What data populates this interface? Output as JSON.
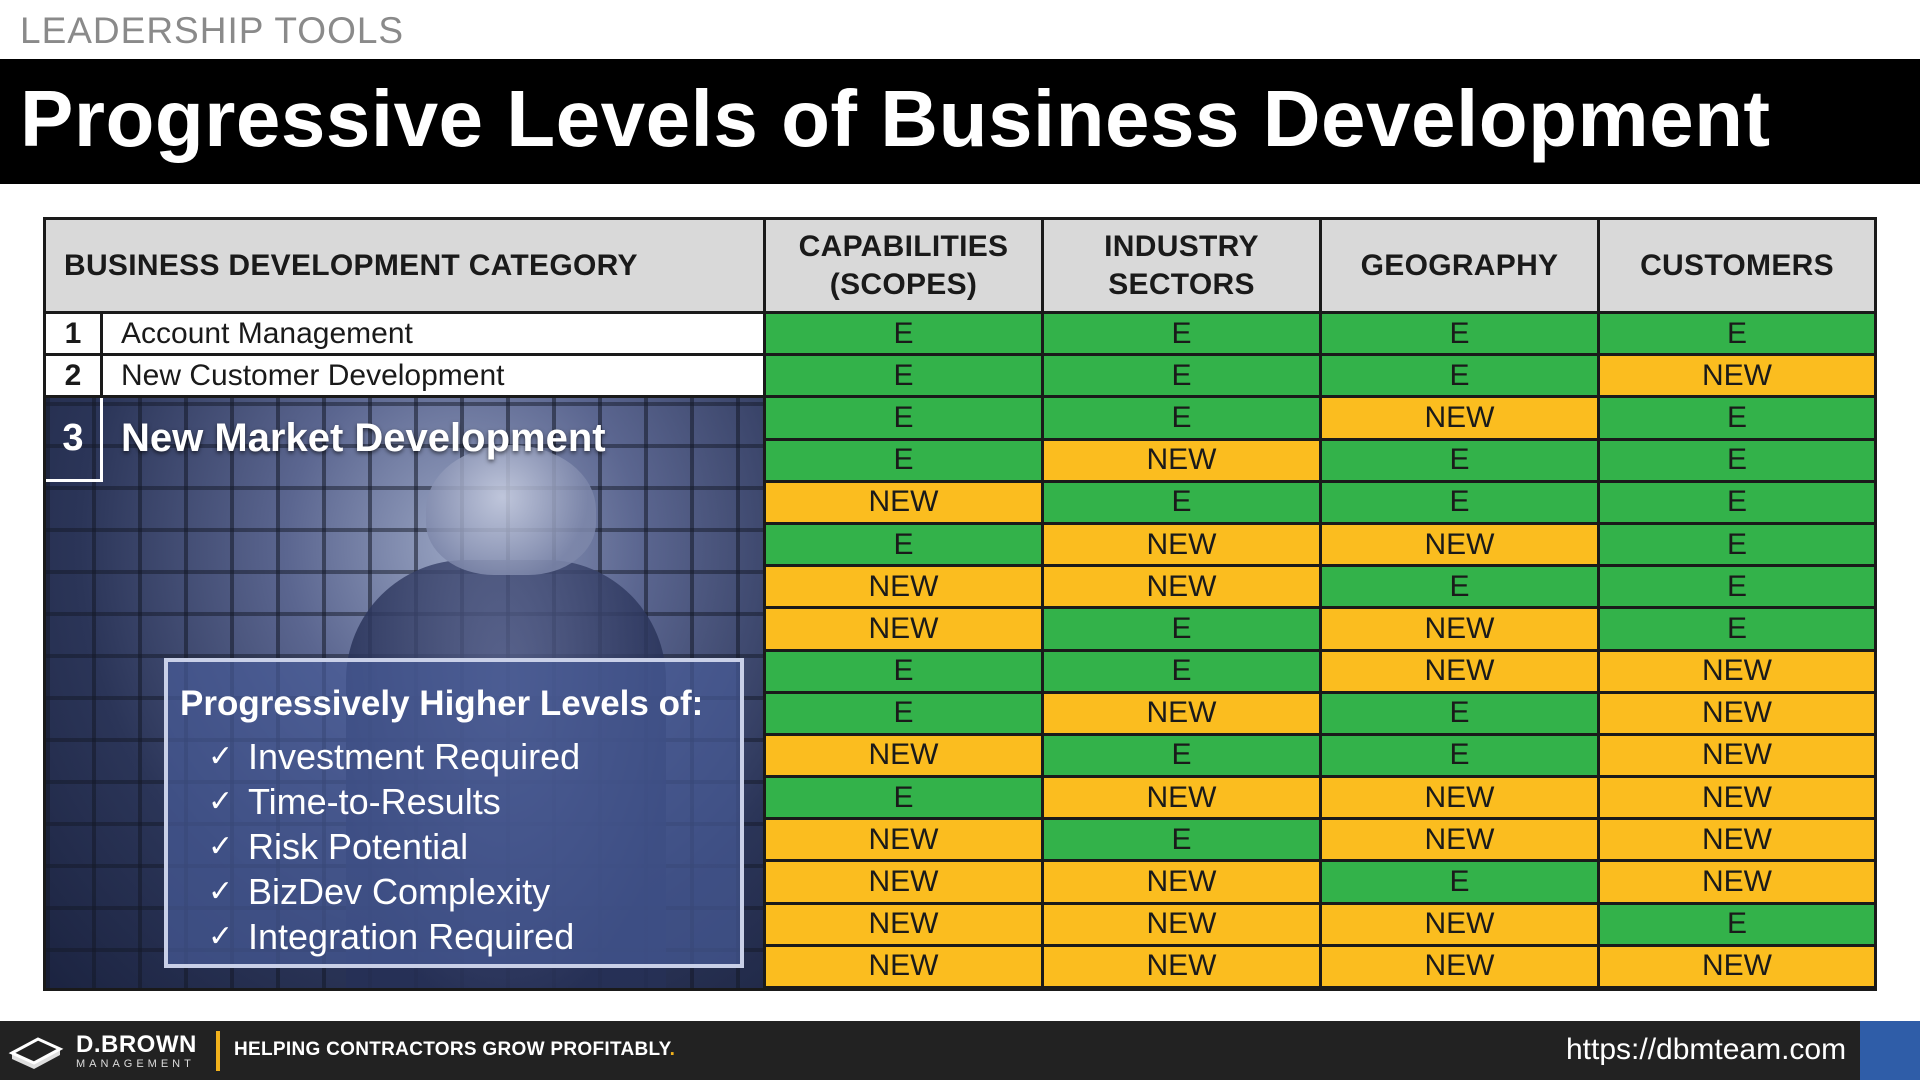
{
  "header": {
    "kicker": "LEADERSHIP TOOLS",
    "title": "Progressive Levels of Business Development"
  },
  "table": {
    "category_header": "BUSINESS DEVELOPMENT CATEGORY",
    "columns": [
      "CAPABILITIES (SCOPES)",
      "INDUSTRY SECTORS",
      "GEOGRAPHY",
      "CUSTOMERS"
    ],
    "categories": [
      {
        "num": "1",
        "label": "Account Management"
      },
      {
        "num": "2",
        "label": "New Customer Development"
      },
      {
        "num": "3",
        "label": "New Market Development"
      }
    ],
    "rows": [
      [
        "E",
        "E",
        "E",
        "E"
      ],
      [
        "E",
        "E",
        "E",
        "NEW"
      ],
      [
        "E",
        "E",
        "NEW",
        "E"
      ],
      [
        "E",
        "NEW",
        "E",
        "E"
      ],
      [
        "NEW",
        "E",
        "E",
        "E"
      ],
      [
        "E",
        "NEW",
        "NEW",
        "E"
      ],
      [
        "NEW",
        "NEW",
        "E",
        "E"
      ],
      [
        "NEW",
        "E",
        "NEW",
        "E"
      ],
      [
        "E",
        "E",
        "NEW",
        "NEW"
      ],
      [
        "E",
        "NEW",
        "E",
        "NEW"
      ],
      [
        "NEW",
        "E",
        "E",
        "NEW"
      ],
      [
        "E",
        "NEW",
        "NEW",
        "NEW"
      ],
      [
        "NEW",
        "E",
        "NEW",
        "NEW"
      ],
      [
        "NEW",
        "NEW",
        "E",
        "NEW"
      ],
      [
        "NEW",
        "NEW",
        "NEW",
        "E"
      ],
      [
        "NEW",
        "NEW",
        "NEW",
        "NEW"
      ]
    ],
    "colors": {
      "existing": "#33b24a",
      "new": "#fbbd1f",
      "header": "#d9d9d9"
    }
  },
  "callout": {
    "heading": "Progressively Higher Levels of:",
    "items": [
      "Investment Required",
      "Time-to-Results",
      "Risk Potential",
      "BizDev Complexity",
      "Integration Required"
    ],
    "check": "✓"
  },
  "footer": {
    "brand": "D.BROWN",
    "brand_sub": "MANAGEMENT",
    "tagline": "HELPING CONTRACTORS GROW PROFITABLY",
    "tagline_dot": ".",
    "url": "https://dbmteam.com"
  }
}
